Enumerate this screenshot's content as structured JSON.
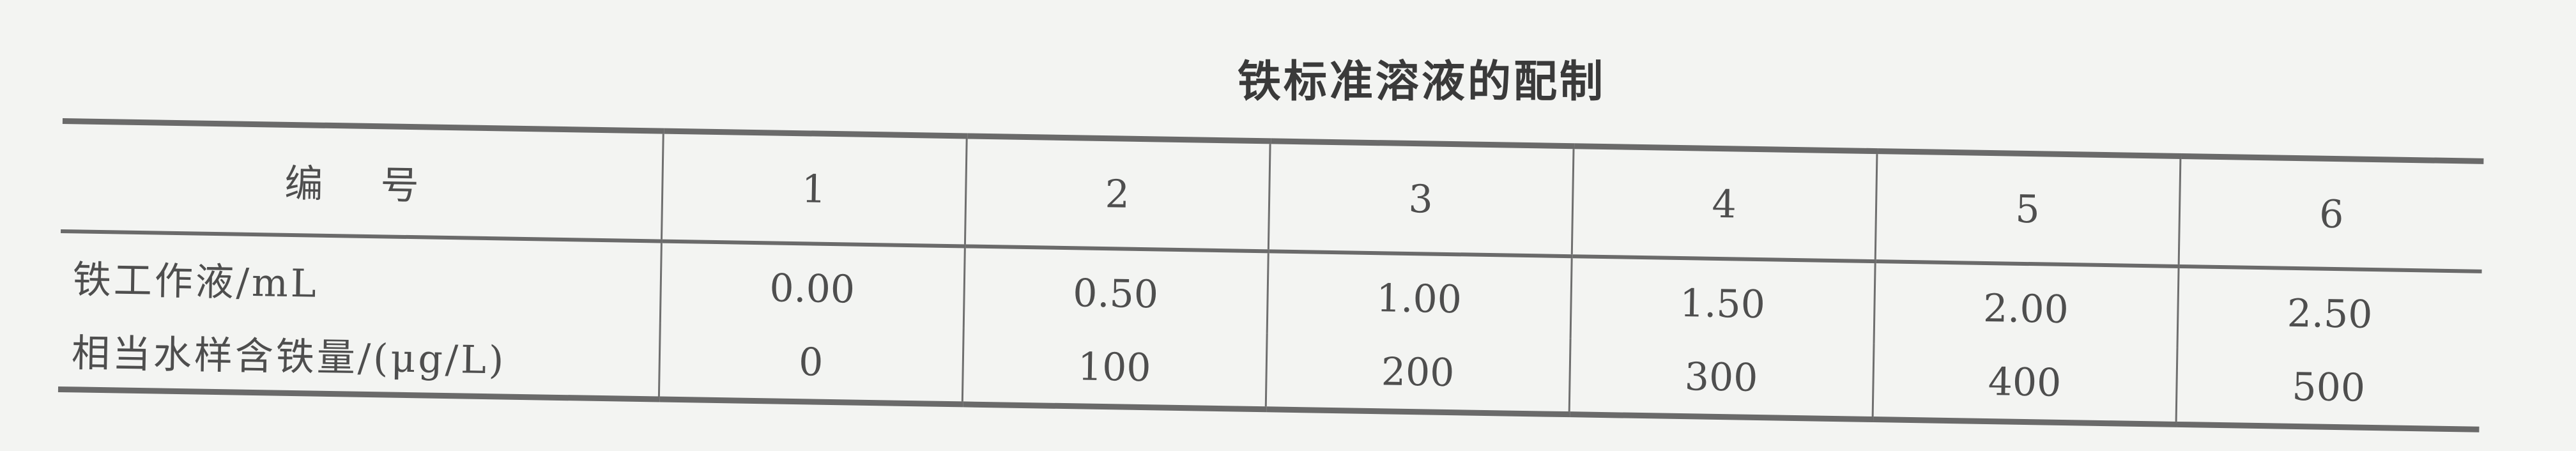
{
  "title": "铁标准溶液的配制",
  "table": {
    "header_label": "编号",
    "columns": [
      "1",
      "2",
      "3",
      "4",
      "5",
      "6"
    ],
    "rows": [
      {
        "label": "铁工作液/mL",
        "values": [
          "0.00",
          "0.50",
          "1.00",
          "1.50",
          "2.00",
          "2.50"
        ]
      },
      {
        "label": "相当水样含铁量/(μg/L)",
        "values": [
          "0",
          "100",
          "200",
          "300",
          "400",
          "500"
        ]
      }
    ]
  }
}
